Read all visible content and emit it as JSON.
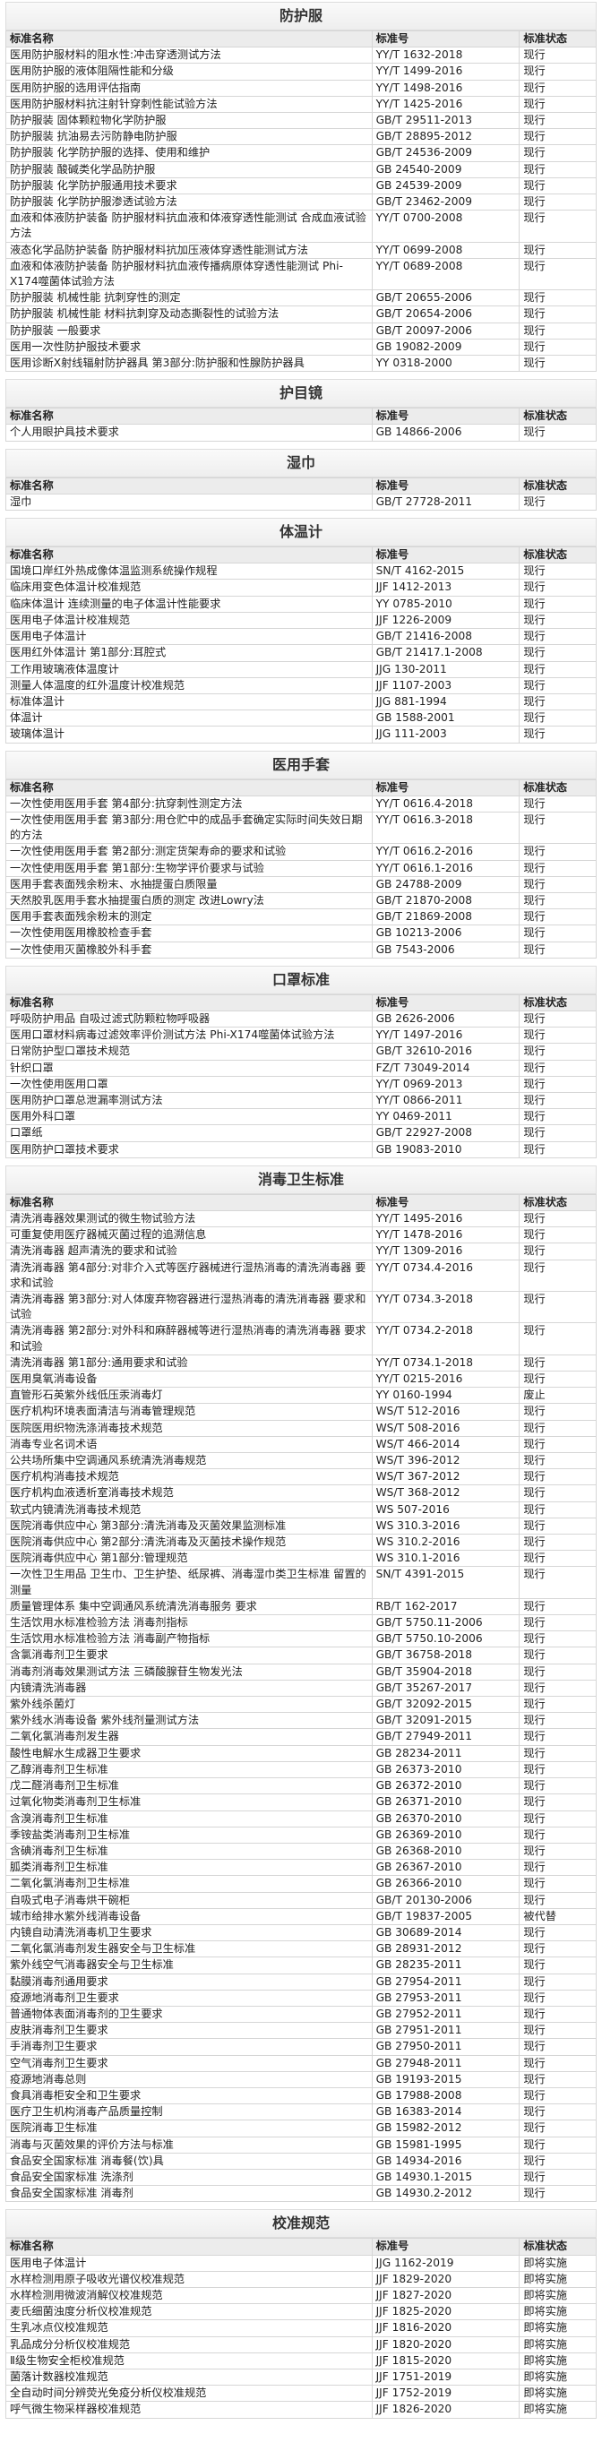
{
  "sections": [
    {
      "title": "防护服",
      "columns": [
        "标准名称",
        "标准号",
        "标准状态"
      ],
      "rows": [
        [
          "医用防护服材料的阻水性:冲击穿透测试方法",
          "YY/T 1632-2018",
          "现行"
        ],
        [
          "医用防护服的液体阻隔性能和分级",
          "YY/T 1499-2016",
          "现行"
        ],
        [
          "医用防护服的选用评估指南",
          "YY/T 1498-2016",
          "现行"
        ],
        [
          "医用防护服材料抗注射针穿刺性能试验方法",
          "YY/T 1425-2016",
          "现行"
        ],
        [
          "防护服装 固体颗粒物化学防护服",
          "GB/T 29511-2013",
          "现行"
        ],
        [
          "防护服装 抗油易去污防静电防护服",
          "GB/T 28895-2012",
          "现行"
        ],
        [
          "防护服装 化学防护服的选择、使用和维护",
          "GB/T 24536-2009",
          "现行"
        ],
        [
          "防护服装 酸碱类化学品防护服",
          "GB 24540-2009",
          "现行"
        ],
        [
          "防护服装 化学防护服通用技术要求",
          "GB 24539-2009",
          "现行"
        ],
        [
          "防护服装 化学防护服渗透试验方法",
          "GB/T 23462-2009",
          "现行"
        ],
        [
          "血液和体液防护装备 防护服材料抗血液和体液穿透性能测试 合成血液试验方法",
          "YY/T 0700-2008",
          "现行"
        ],
        [
          "液态化学品防护装备 防护服材料抗加压液体穿透性能测试方法",
          "YY/T 0699-2008",
          "现行"
        ],
        [
          "血液和体液防护装备 防护服材料抗血液传播病原体穿透性能测试 Phi-X174噬菌体试验方法",
          "YY/T 0689-2008",
          "现行"
        ],
        [
          "防护服装 机械性能 抗刺穿性的测定",
          "GB/T 20655-2006",
          "现行"
        ],
        [
          "防护服装 机械性能 材料抗刺穿及动态撕裂性的试验方法",
          "GB/T 20654-2006",
          "现行"
        ],
        [
          "防护服装 一般要求",
          "GB/T 20097-2006",
          "现行"
        ],
        [
          "医用一次性防护服技术要求",
          "GB 19082-2009",
          "现行"
        ],
        [
          "医用诊断X射线辐射防护器具 第3部分:防护服和性腺防护器具",
          "YY 0318-2000",
          "现行"
        ]
      ]
    },
    {
      "title": "护目镜",
      "columns": [
        "标准名称",
        "标准号",
        "标准状态"
      ],
      "rows": [
        [
          "个人用眼护具技术要求",
          "GB 14866-2006",
          "现行"
        ]
      ]
    },
    {
      "title": "湿巾",
      "columns": [
        "标准名称",
        "标准号",
        "标准状态"
      ],
      "rows": [
        [
          "湿巾",
          "GB/T 27728-2011",
          "现行"
        ]
      ]
    },
    {
      "title": "体温计",
      "columns": [
        "标准名称",
        "标准号",
        "标准状态"
      ],
      "rows": [
        [
          "国境口岸红外热成像体温监测系统操作规程",
          "SN/T 4162-2015",
          "现行"
        ],
        [
          "临床用变色体温计校准规范",
          "JJF 1412-2013",
          "现行"
        ],
        [
          "临床体温计 连续测量的电子体温计性能要求",
          "YY 0785-2010",
          "现行"
        ],
        [
          "医用电子体温计校准规范",
          "JJF 1226-2009",
          "现行"
        ],
        [
          "医用电子体温计",
          "GB/T 21416-2008",
          "现行"
        ],
        [
          "医用红外体温计 第1部分:耳腔式",
          "GB/T 21417.1-2008",
          "现行"
        ],
        [
          "工作用玻璃液体温度计",
          "JJG 130-2011",
          "现行"
        ],
        [
          "测量人体温度的红外温度计校准规范",
          "JJF 1107-2003",
          "现行"
        ],
        [
          "标准体温计",
          "JJG 881-1994",
          "现行"
        ],
        [
          "体温计",
          "GB 1588-2001",
          "现行"
        ],
        [
          "玻璃体温计",
          "JJG 111-2003",
          "现行"
        ]
      ]
    },
    {
      "title": "医用手套",
      "columns": [
        "标准名称",
        "标准号",
        "标准状态"
      ],
      "rows": [
        [
          "一次性使用医用手套 第4部分:抗穿刺性测定方法",
          "YY/T 0616.4-2018",
          "现行"
        ],
        [
          "一次性使用医用手套 第3部分:用仓贮中的成品手套确定实际时间失效日期的方法",
          "YY/T 0616.3-2018",
          "现行"
        ],
        [
          "一次性使用医用手套 第2部分:测定货架寿命的要求和试验",
          "YY/T 0616.2-2016",
          "现行"
        ],
        [
          "一次性使用医用手套 第1部分:生物学评价要求与试验",
          "YY/T 0616.1-2016",
          "现行"
        ],
        [
          "医用手套表面残余粉末、水抽提蛋白质限量",
          "GB 24788-2009",
          "现行"
        ],
        [
          "天然胶乳医用手套水抽提蛋白质的测定 改进Lowry法",
          "GB/T 21870-2008",
          "现行"
        ],
        [
          "医用手套表面残余粉末的测定",
          "GB/T 21869-2008",
          "现行"
        ],
        [
          "一次性使用医用橡胶检查手套",
          "GB 10213-2006",
          "现行"
        ],
        [
          "一次性使用灭菌橡胶外科手套",
          "GB 7543-2006",
          "现行"
        ]
      ]
    },
    {
      "title": "口罩标准",
      "columns": [
        "标准名称",
        "标准号",
        "标准状态"
      ],
      "rows": [
        [
          "呼吸防护用品 自吸过滤式防颗粒物呼吸器",
          "GB 2626-2006",
          "现行"
        ],
        [
          "医用口罩材料病毒过滤效率评价测试方法 Phi-X174噬菌体试验方法",
          "YY/T 1497-2016",
          "现行"
        ],
        [
          "日常防护型口罩技术规范",
          "GB/T 32610-2016",
          "现行"
        ],
        [
          "针织口罩",
          "FZ/T 73049-2014",
          "现行"
        ],
        [
          "一次性使用医用口罩",
          "YY/T 0969-2013",
          "现行"
        ],
        [
          "医用防护口罩总泄漏率测试方法",
          "YY/T 0866-2011",
          "现行"
        ],
        [
          "医用外科口罩",
          "YY 0469-2011",
          "现行"
        ],
        [
          "口罩纸",
          "GB/T 22927-2008",
          "现行"
        ],
        [
          "医用防护口罩技术要求",
          "GB 19083-2010",
          "现行"
        ]
      ]
    },
    {
      "title": "消毒卫生标准",
      "columns": [
        "标准名称",
        "标准号",
        "标准状态"
      ],
      "rows": [
        [
          "清洗消毒器效果测试的微生物试验方法",
          "YY/T 1495-2016",
          "现行"
        ],
        [
          "可重复使用医疗器械灭菌过程的追溯信息",
          "YY/T 1478-2016",
          "现行"
        ],
        [
          "清洗消毒器 超声清洗的要求和试验",
          "YY/T 1309-2016",
          "现行"
        ],
        [
          "清洗消毒器 第4部分:对非介入式等医疗器械进行湿热消毒的清洗消毒器 要求和试验",
          "YY/T 0734.4-2016",
          "现行"
        ],
        [
          "清洗消毒器 第3部分:对人体废弃物容器进行湿热消毒的清洗消毒器 要求和试验",
          "YY/T 0734.3-2018",
          "现行"
        ],
        [
          "清洗消毒器 第2部分:对外科和麻醉器械等进行湿热消毒的清洗消毒器 要求和试验",
          "YY/T 0734.2-2018",
          "现行"
        ],
        [
          "清洗消毒器 第1部分:通用要求和试验",
          "YY/T 0734.1-2018",
          "现行"
        ],
        [
          "医用臭氧消毒设备",
          "YY/T 0215-2016",
          "现行"
        ],
        [
          "直管形石英紫外线低压汞消毒灯",
          "YY 0160-1994",
          "废止"
        ],
        [
          "医疗机构环境表面清洁与消毒管理规范",
          "WS/T 512-2016",
          "现行"
        ],
        [
          "医院医用织物洗涤消毒技术规范",
          "WS/T 508-2016",
          "现行"
        ],
        [
          "消毒专业名词术语",
          "WS/T 466-2014",
          "现行"
        ],
        [
          "公共场所集中空调通风系统清洗消毒规范",
          "WS/T 396-2012",
          "现行"
        ],
        [
          "医疗机构消毒技术规范",
          "WS/T 367-2012",
          "现行"
        ],
        [
          "医疗机构血液透析室消毒技术规范",
          "WS/T 368-2012",
          "现行"
        ],
        [
          "软式内镜清洗消毒技术规范",
          "WS 507-2016",
          "现行"
        ],
        [
          "医院消毒供应中心 第3部分:清洗消毒及灭菌效果监测标准",
          "WS 310.3-2016",
          "现行"
        ],
        [
          "医院消毒供应中心 第2部分:清洗消毒及灭菌技术操作规范",
          "WS 310.2-2016",
          "现行"
        ],
        [
          "医院消毒供应中心 第1部分:管理规范",
          "WS 310.1-2016",
          "现行"
        ],
        [
          "一次性卫生用品 卫生巾、卫生护垫、纸尿裤、消毒湿巾类卫生标准 留置的测量",
          "SN/T 4391-2015",
          "现行"
        ],
        [
          "质量管理体系 集中空调通风系统清洗消毒服务 要求",
          "RB/T 162-2017",
          "现行"
        ],
        [
          "生活饮用水标准检验方法 消毒剂指标",
          "GB/T 5750.11-2006",
          "现行"
        ],
        [
          "生活饮用水标准检验方法 消毒副产物指标",
          "GB/T 5750.10-2006",
          "现行"
        ],
        [
          "含氯消毒剂卫生要求",
          "GB/T 36758-2018",
          "现行"
        ],
        [
          "消毒剂消毒效果测试方法 三磷酸腺苷生物发光法",
          "GB/T 35904-2018",
          "现行"
        ],
        [
          "内镜清洗消毒器",
          "GB/T 35267-2017",
          "现行"
        ],
        [
          "紫外线杀菌灯",
          "GB/T 32092-2015",
          "现行"
        ],
        [
          "紫外线水消毒设备 紫外线剂量测试方法",
          "GB/T 32091-2015",
          "现行"
        ],
        [
          "二氧化氯消毒剂发生器",
          "GB/T 27949-2011",
          "现行"
        ],
        [
          "酸性电解水生成器卫生要求",
          "GB 28234-2011",
          "现行"
        ],
        [
          "乙醇消毒剂卫生标准",
          "GB 26373-2010",
          "现行"
        ],
        [
          "戊二醛消毒剂卫生标准",
          "GB 26372-2010",
          "现行"
        ],
        [
          "过氧化物类消毒剂卫生标准",
          "GB 26371-2010",
          "现行"
        ],
        [
          "含溴消毒剂卫生标准",
          "GB 26370-2010",
          "现行"
        ],
        [
          "季铵盐类消毒剂卫生标准",
          "GB 26369-2010",
          "现行"
        ],
        [
          "含碘消毒剂卫生标准",
          "GB 26368-2010",
          "现行"
        ],
        [
          "胍类消毒剂卫生标准",
          "GB 26367-2010",
          "现行"
        ],
        [
          "二氧化氯消毒剂卫生标准",
          "GB 26366-2010",
          "现行"
        ],
        [
          "自吸式电子消毒烘干碗柜",
          "GB/T 20130-2006",
          "现行"
        ],
        [
          "城市给排水紫外线消毒设备",
          "GB/T 19837-2005",
          "被代替"
        ],
        [
          "内镜自动清洗消毒机卫生要求",
          "GB 30689-2014",
          "现行"
        ],
        [
          "二氧化氯消毒剂发生器安全与卫生标准",
          "GB 28931-2012",
          "现行"
        ],
        [
          "紫外线空气消毒器安全与卫生标准",
          "GB 28235-2011",
          "现行"
        ],
        [
          "黏膜消毒剂通用要求",
          "GB 27954-2011",
          "现行"
        ],
        [
          "疫源地消毒剂卫生要求",
          "GB 27953-2011",
          "现行"
        ],
        [
          "普通物体表面消毒剂的卫生要求",
          "GB 27952-2011",
          "现行"
        ],
        [
          "皮肤消毒剂卫生要求",
          "GB 27951-2011",
          "现行"
        ],
        [
          "手消毒剂卫生要求",
          "GB 27950-2011",
          "现行"
        ],
        [
          "空气消毒剂卫生要求",
          "GB 27948-2011",
          "现行"
        ],
        [
          "疫源地消毒总则",
          "GB 19193-2015",
          "现行"
        ],
        [
          "食具消毒柜安全和卫生要求",
          "GB 17988-2008",
          "现行"
        ],
        [
          "医疗卫生机构消毒产品质量控制",
          "GB 16383-2014",
          "现行"
        ],
        [
          "医院消毒卫生标准",
          "GB 15982-2012",
          "现行"
        ],
        [
          "消毒与灭菌效果的评价方法与标准",
          "GB 15981-1995",
          "现行"
        ],
        [
          "食品安全国家标准 消毒餐(饮)具",
          "GB 14934-2016",
          "现行"
        ],
        [
          "食品安全国家标准 洗涤剂",
          "GB 14930.1-2015",
          "现行"
        ],
        [
          "食品安全国家标准 消毒剂",
          "GB 14930.2-2012",
          "现行"
        ]
      ]
    },
    {
      "title": "校准规范",
      "columns": [
        "标准名称",
        "标准号",
        "标准状态"
      ],
      "rows": [
        [
          "医用电子体温计",
          "JJG 1162-2019",
          "即将实施"
        ],
        [
          "水样检测用原子吸收光谱仪校准规范",
          "JJF 1829-2020",
          "即将实施"
        ],
        [
          "水样检测用微波消解仪校准规范",
          "JJF 1827-2020",
          "即将实施"
        ],
        [
          "麦氏细菌浊度分析仪校准规范",
          "JJF 1825-2020",
          "即将实施"
        ],
        [
          "生乳冰点仪校准规范",
          "JJF 1816-2020",
          "即将实施"
        ],
        [
          "乳品成分分析仪校准规范",
          "JJF 1820-2020",
          "即将实施"
        ],
        [
          "Ⅱ级生物安全柜校准规范",
          "JJF 1815-2020",
          "即将实施"
        ],
        [
          "菌落计数器校准规范",
          "JJF 1751-2019",
          "即将实施"
        ],
        [
          "全自动时间分辨荧光免疫分析仪校准规范",
          "JJF 1752-2019",
          "即将实施"
        ],
        [
          "呼气微生物采样器校准规范",
          "JJF 1826-2020",
          "即将实施"
        ]
      ]
    }
  ]
}
